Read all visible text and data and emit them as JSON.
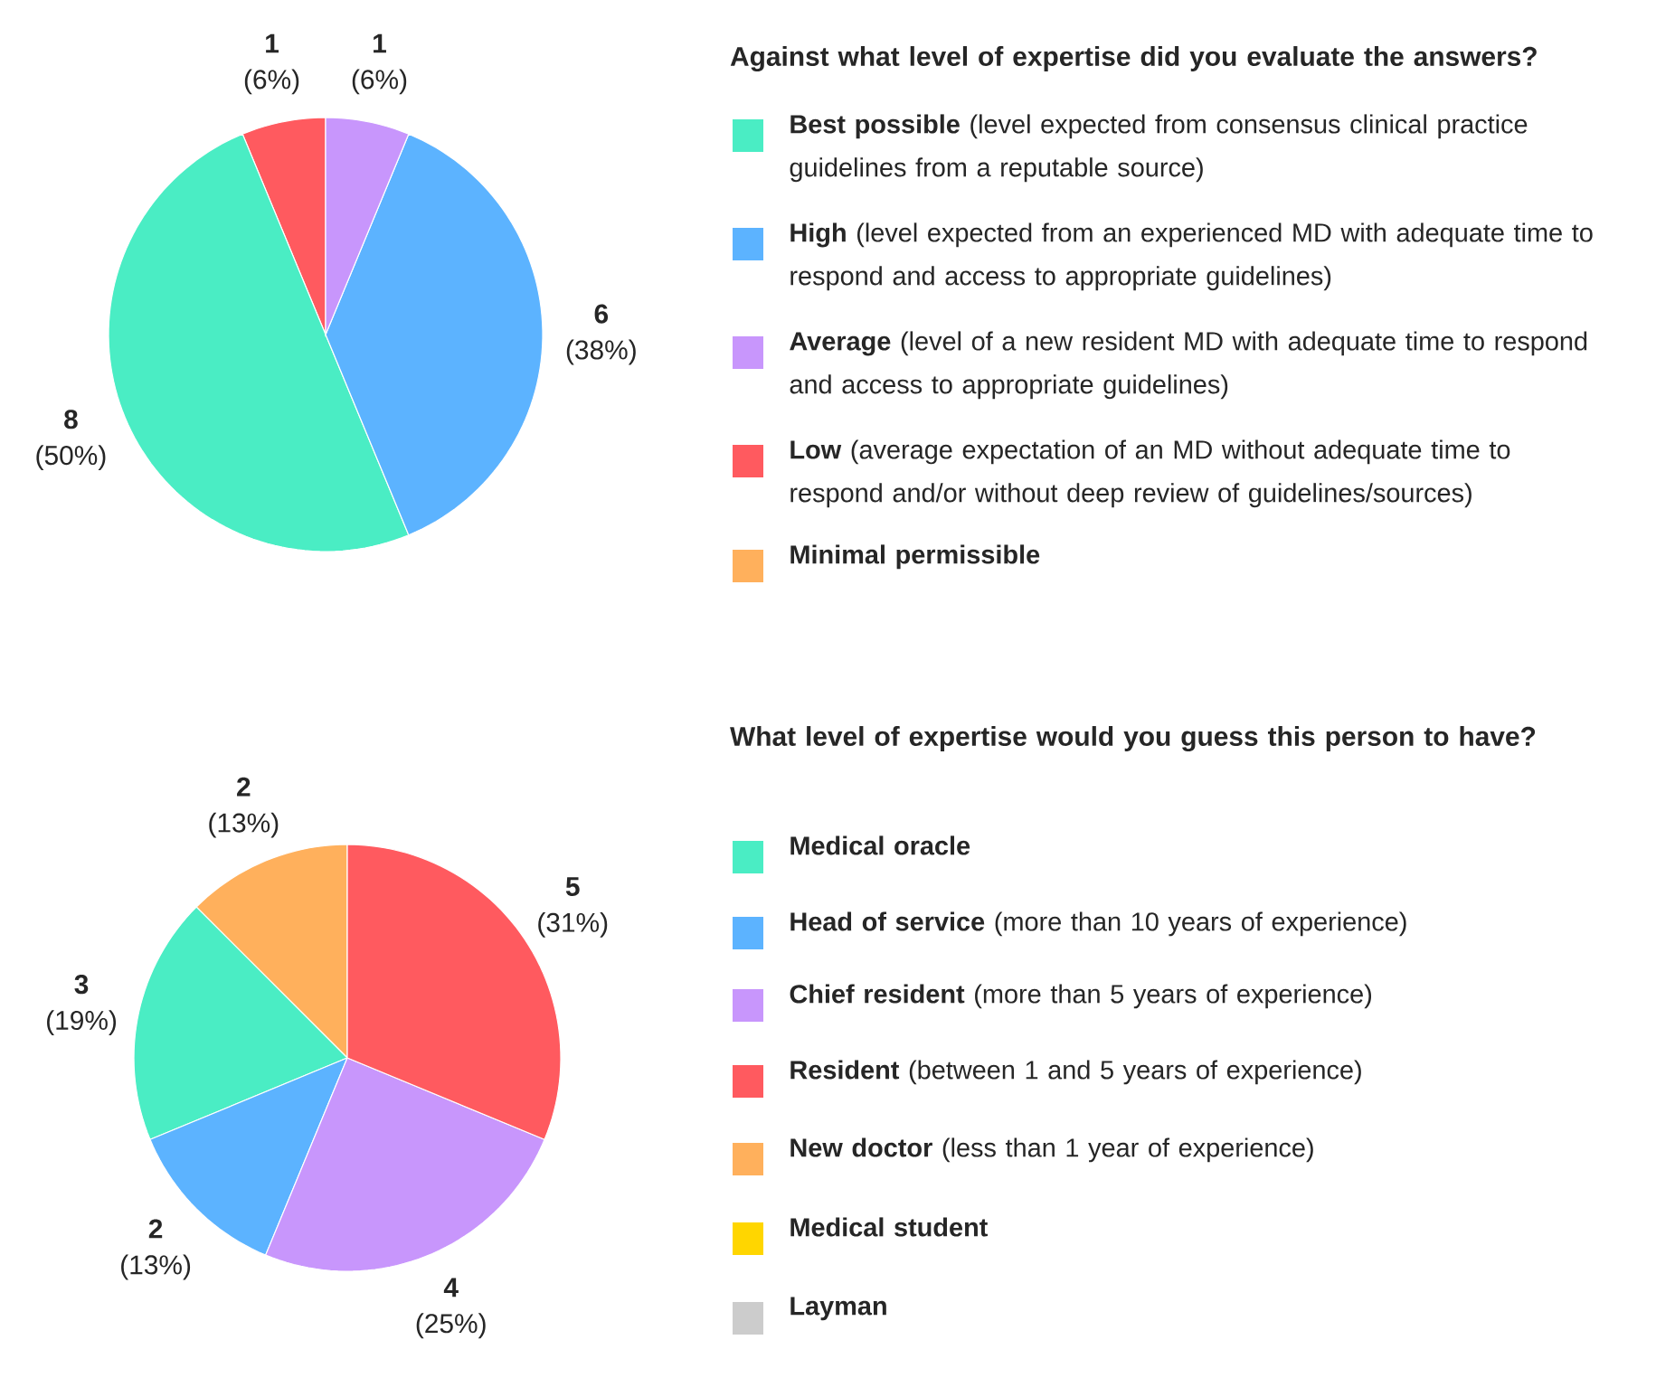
{
  "chart_data": [
    {
      "type": "pie",
      "title": "Against what level of expertise did you evaluate the answers?",
      "categories": [
        "**Best possible** (level expected from consensus clinical practice guidelines from a reputable source)",
        "**High** (level expected from an experienced MD with adequate time to respond and access to appropriate guidelines)",
        "**Average** (level of a new resident MD with adequate time to respond and access to appropriate guidelines)",
        "**Low** (average expectation of an MD without adequate time to respond and/or without deep review of guidelines/sources)",
        "**Minimal permissible**"
      ],
      "values": [
        8,
        6,
        1,
        1,
        0
      ],
      "value_labels": [
        "**8** (50%)",
        "**6** (38%)",
        "**1** (6%)",
        "**1** (6%)",
        null
      ],
      "colors": [
        "#4aedc4",
        "#5cb3ff",
        "#c896fc",
        "#ff5a5f",
        "#ffb05c"
      ],
      "legend": "right"
    },
    {
      "type": "pie",
      "title": "What level of expertise would you guess this person to have?",
      "categories": [
        "**Medical oracle**",
        "**Head of service** (more than 10 years of experience)",
        "**Chief resident** (more than 5 years of experience)",
        "**Resident** (between 1 and 5 years of experience)",
        "**New doctor** (less than 1 year of experience)",
        "**Medical student**",
        "**Layman**"
      ],
      "values": [
        3,
        2,
        4,
        5,
        2,
        0,
        0
      ],
      "value_labels": [
        "**3** (19%)",
        "**2** (13%)",
        "**4** (25%)",
        "**5** (31%)",
        "**2** (13%)",
        null,
        null
      ],
      "colors": [
        "#4aedc4",
        "#5cb3ff",
        "#c896fc",
        "#ff5a5f",
        "#ffb05c",
        "#ffd600",
        "#cccccc"
      ],
      "legend": "right"
    }
  ]
}
